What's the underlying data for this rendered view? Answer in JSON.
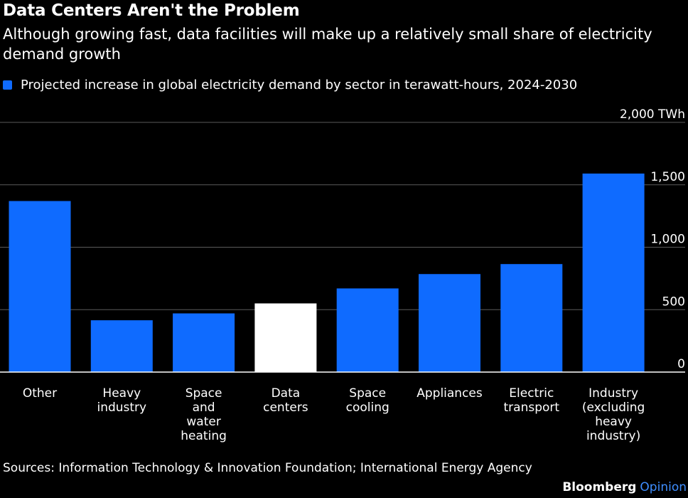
{
  "header": {
    "title": "Data Centers Aren't the Problem",
    "subtitle": "Although growing fast, data facilities will make up a relatively small share of electricity demand growth"
  },
  "colors": {
    "background": "#000000",
    "bar": "#0F6BFF",
    "highlight_bar": "#FFFFFF",
    "gridline": "#5A5A5A",
    "text": "#FFFFFF",
    "opinion_accent": "#3F8EFF"
  },
  "footer": {
    "source": "Sources: Information Technology & Innovation Foundation; International Energy Agency",
    "brand_name": "Bloomberg",
    "brand_section": "Opinion"
  },
  "chart_data": {
    "type": "bar",
    "title": "Data Centers Aren't the Problem",
    "subtitle": "Although growing fast, data facilities will make up a relatively small share of electricity demand growth",
    "xlabel": "",
    "ylabel": "",
    "ylim": [
      0,
      2000
    ],
    "yticks": [
      0,
      500,
      1000,
      1500,
      2000
    ],
    "ytick_labels": [
      "0",
      "500",
      "1,000",
      "1,500",
      "2,000 TWh"
    ],
    "y_axis_side": "right",
    "grid": true,
    "legend_position": "top-left",
    "categories": [
      [
        "Other"
      ],
      [
        "Heavy",
        "industry"
      ],
      [
        "Space",
        "and",
        "water",
        "heating"
      ],
      [
        "Data",
        "centers"
      ],
      [
        "Space",
        "cooling"
      ],
      [
        "Appliances"
      ],
      [
        "Electric",
        "transport"
      ],
      [
        "Industry",
        "(excluding",
        "heavy",
        "industry)"
      ]
    ],
    "series": [
      {
        "name": "Projected increase in global electricity demand by sector in terawatt-hours, 2024-2030",
        "values": [
          1370,
          415,
          470,
          550,
          670,
          785,
          865,
          1590
        ],
        "highlight_index": 3
      }
    ]
  }
}
